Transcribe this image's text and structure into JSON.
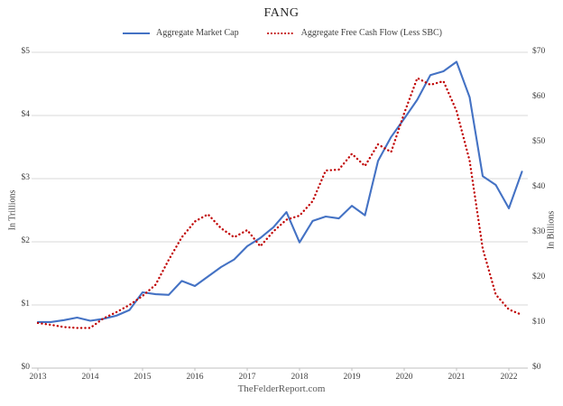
{
  "chart": {
    "title": "FANG",
    "caption": "TheFelderReport.com",
    "legend": [
      {
        "label": "Aggregate Market Cap",
        "color": "#4472C4",
        "style": "solid"
      },
      {
        "label": "Aggregate Free Cash Flow (Less SBC)",
        "color": "#C00000",
        "style": "dotted"
      }
    ],
    "left_axis": {
      "title": "In Trillions",
      "ticks": [
        "$0",
        "$1",
        "$2",
        "$3",
        "$4",
        "$5"
      ]
    },
    "right_axis": {
      "title": "In Billions",
      "ticks": [
        "$0",
        "$10",
        "$20",
        "$30",
        "$40",
        "$50",
        "$60",
        "$70"
      ]
    },
    "x_axis": {
      "years": [
        "2013",
        "2014",
        "2015",
        "2016",
        "2017",
        "2018",
        "2019",
        "2020",
        "2021",
        "2022"
      ]
    },
    "colors": {
      "gridline": "#D9D9D9",
      "axis_line": "#BFBFBF",
      "text": "#404040"
    }
  },
  "chart_data": {
    "type": "line",
    "title": "FANG",
    "x_start_year": 2013,
    "frequency": "quarterly",
    "x_range": [
      2013.0,
      2022.25
    ],
    "left_ylim": [
      0,
      5
    ],
    "right_ylim": [
      0,
      70
    ],
    "grid": "horizontal",
    "legend_position": "top",
    "source": "TheFelderReport.com",
    "series": [
      {
        "name": "Aggregate Market Cap",
        "axis": "left",
        "unit": "USD trillions",
        "color": "#4472C4",
        "line_style": "solid",
        "values": [
          0.73,
          0.73,
          0.76,
          0.8,
          0.75,
          0.78,
          0.83,
          0.92,
          1.2,
          1.17,
          1.16,
          1.38,
          1.3,
          1.45,
          1.6,
          1.72,
          1.93,
          2.06,
          2.23,
          2.47,
          1.99,
          2.33,
          2.4,
          2.37,
          2.57,
          2.42,
          3.28,
          3.66,
          3.95,
          4.25,
          4.64,
          4.7,
          4.85,
          4.29,
          3.04,
          2.9,
          2.53,
          3.11
        ]
      },
      {
        "name": "Aggregate Free Cash Flow (Less SBC)",
        "axis": "right",
        "unit": "USD billions",
        "color": "#C00000",
        "line_style": "dotted",
        "values": [
          10.0,
          9.6,
          9.1,
          8.9,
          8.9,
          11.0,
          12.4,
          14.0,
          16.0,
          18.5,
          24.0,
          29.0,
          32.5,
          34.1,
          31.0,
          29.0,
          30.6,
          27.0,
          30.3,
          32.9,
          33.8,
          37.0,
          43.8,
          44.0,
          47.5,
          44.8,
          49.6,
          47.9,
          56.5,
          64.3,
          62.8,
          63.6,
          57.0,
          46.0,
          26.5,
          16.3,
          13.0,
          11.8
        ]
      }
    ]
  }
}
